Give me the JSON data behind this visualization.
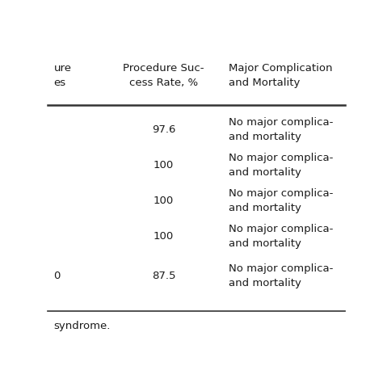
{
  "col0_partial_header": "ure\nes",
  "col1_header": "Procedure Suc-\ncess Rate, %",
  "col2_header": "Major Complication\nand Mortality",
  "col0_row_texts": [
    "",
    "",
    "",
    "",
    "0"
  ],
  "col1_values": [
    "97.6",
    "100",
    "100",
    "100",
    "87.5"
  ],
  "col2_values": [
    "No major complica-\nand mortality",
    "No major complica-\nand mortality",
    "No major complica-\nand mortality",
    "No major complica-\nand mortality",
    "No major complica-\nand mortality"
  ],
  "footer": "syndrome.",
  "bg_color": "#ffffff",
  "text_color": "#1a1a1a",
  "line_color": "#333333",
  "font_size": 9.5,
  "header_font_size": 9.5
}
